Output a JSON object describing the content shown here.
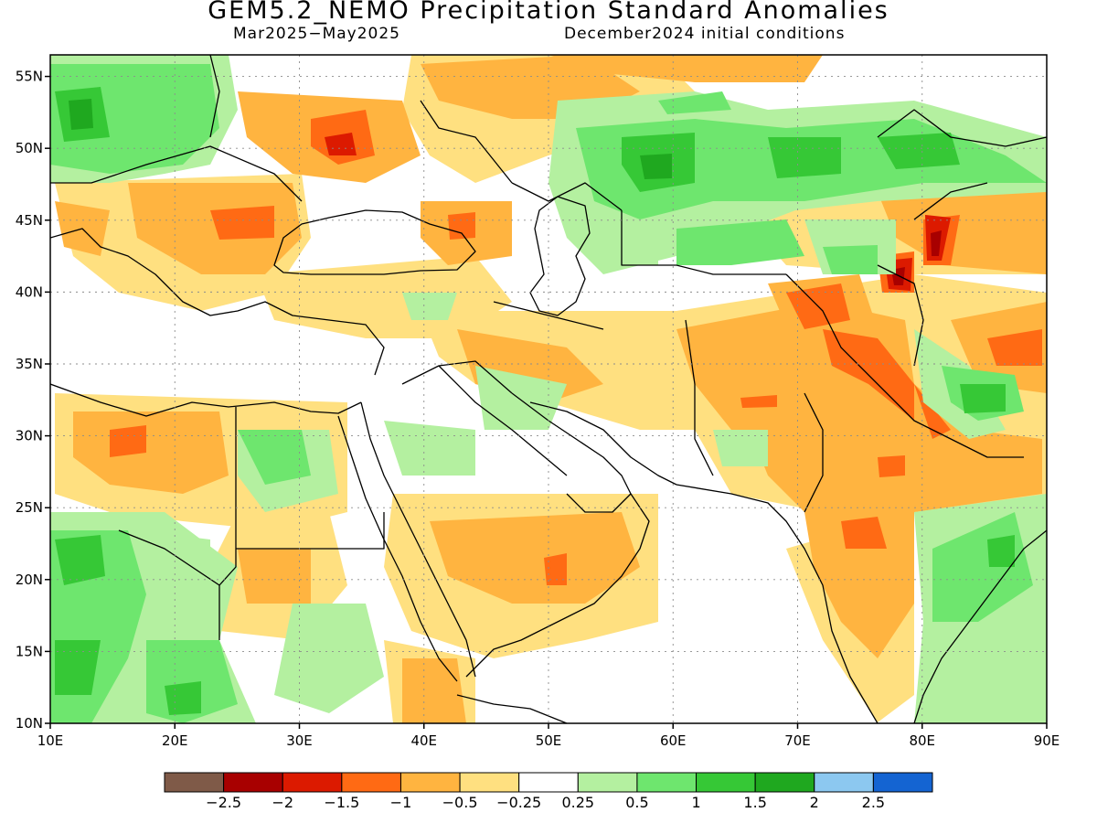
{
  "title": "GEM5.2_NEMO Precipitation Standard Anomalies",
  "period": "Mar2025−May2025",
  "initial_conditions": "December2024 initial conditions",
  "lon_ticks": [
    "10E",
    "20E",
    "30E",
    "40E",
    "50E",
    "60E",
    "70E",
    "80E",
    "90E"
  ],
  "lat_ticks": [
    "10N",
    "15N",
    "20N",
    "25N",
    "30N",
    "35N",
    "40N",
    "45N",
    "50N",
    "55N"
  ],
  "extent": {
    "lon_min": 10,
    "lon_max": 90,
    "lat_min": 10,
    "lat_max": 56.5
  },
  "legend": {
    "colors": [
      "#7f5a48",
      "#a80000",
      "#dc1a00",
      "#ff6a14",
      "#ffb440",
      "#ffe080",
      "#ffffff",
      "#b4f0a0",
      "#6ee66e",
      "#36c836",
      "#1fa81f",
      "#8cc8f0",
      "#1464d2"
    ],
    "labels": [
      "−2.5",
      "−2",
      "−1.5",
      "−1",
      "−0.5",
      "−0.25",
      "0.25",
      "0.5",
      "1",
      "1.5",
      "2",
      "2.5"
    ]
  },
  "colors": {
    "dry_weak": "#ffe080",
    "dry_moderate": "#ffb440",
    "dry_strong": "#ff6a14",
    "dry_very_strong": "#dc1a00",
    "dry_extreme": "#a80000",
    "wet_weak": "#b4f0a0",
    "wet_moderate": "#6ee66e",
    "wet_strong": "#36c836",
    "wet_very_strong": "#1fa81f"
  }
}
